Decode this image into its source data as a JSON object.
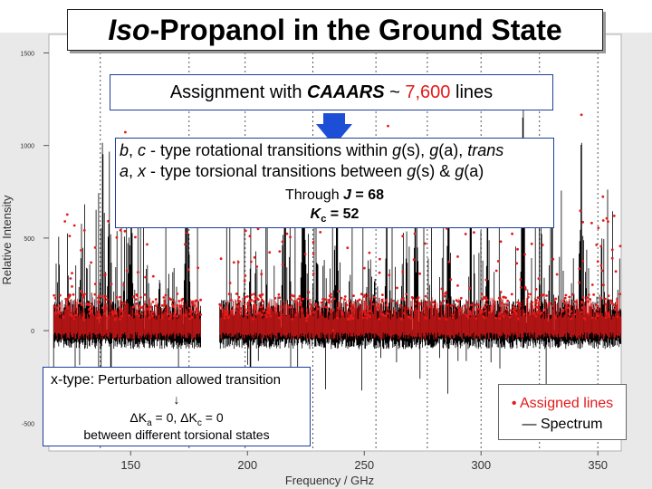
{
  "title": {
    "prefix": "Iso",
    "rest": "-Propanol in the Ground State"
  },
  "assignment_box": {
    "text_before": "Assignment with ",
    "method": "CAAARS",
    "tilde": " ~ ",
    "count": "7,600",
    "text_after": " lines"
  },
  "info_box": {
    "line1": {
      "b": "b",
      "sep1": ", ",
      "c": "c",
      "mid": " - type rotational transitions within ",
      "gs": "g",
      "s": "(s), ",
      "ga": "g",
      "a": "(a), ",
      "trans": "trans"
    },
    "line2": {
      "a": "a",
      "sep1": ", ",
      "x": "x",
      "mid": " - type torsional transitions between ",
      "g1": "g",
      "s1": "(s) & ",
      "g2": "g",
      "a2": "(a)"
    },
    "line3": {
      "prefix": "Through ",
      "J": "J",
      "eq": " = 68"
    },
    "line4": {
      "K": "K",
      "sub": "c",
      "eq": " = 52"
    }
  },
  "xtype_box": {
    "prefix": "x-type:",
    "desc": " Perturbation allowed transition",
    "arrow": "↓",
    "delta1": "ΔK",
    "sub1": "a",
    "eq1": " = 0, ",
    "delta2": "ΔK",
    "sub2": "c",
    "eq2": " = 0",
    "line3": "between different torsional states"
  },
  "legend": {
    "assigned": "• Assigned lines",
    "spectrum": "— Spectrum"
  },
  "chart_data": {
    "type": "line",
    "xlabel": "Frequency / GHz",
    "ylabel": "Relative Intensity",
    "x_ticks": [
      "150",
      "200",
      "250",
      "300",
      "350"
    ],
    "y_ticks": [
      "1500",
      "1000",
      "500",
      "0",
      "-500"
    ],
    "xlim": [
      115,
      360
    ],
    "ylim": [
      -650,
      1600
    ],
    "series": [
      {
        "name": "Spectrum",
        "color": "#000000"
      },
      {
        "name": "Assigned lines",
        "color": "#e51a1a"
      }
    ],
    "gap_ghz": [
      [
        180,
        188
      ]
    ],
    "dashed_markers_ghz": [
      137,
      175,
      199,
      228,
      255,
      277,
      300,
      325,
      350
    ],
    "bursts": [
      {
        "center": 129,
        "width": 1.2,
        "height": 790
      },
      {
        "center": 138,
        "width": 1.5,
        "height": 1280
      },
      {
        "center": 141,
        "width": 1.2,
        "height": 1120
      },
      {
        "center": 148,
        "width": 1.5,
        "height": 1360
      },
      {
        "center": 150,
        "width": 1.3,
        "height": 1230
      },
      {
        "center": 157,
        "width": 1.2,
        "height": 660
      },
      {
        "center": 174,
        "width": 1.4,
        "height": 1310
      },
      {
        "center": 216,
        "width": 1.6,
        "height": 1360
      },
      {
        "center": 224,
        "width": 1.5,
        "height": 1230
      },
      {
        "center": 229,
        "width": 1.4,
        "height": 1290
      },
      {
        "center": 238,
        "width": 1.3,
        "height": 1150
      },
      {
        "center": 260,
        "width": 1.5,
        "height": 1360
      },
      {
        "center": 272,
        "width": 1.4,
        "height": 1200
      },
      {
        "center": 286,
        "width": 1.4,
        "height": 1150
      },
      {
        "center": 296,
        "width": 1.6,
        "height": 1360
      },
      {
        "center": 303,
        "width": 1.3,
        "height": 1220
      },
      {
        "center": 318,
        "width": 1.5,
        "height": 1360
      },
      {
        "center": 330,
        "width": 1.4,
        "height": 1270
      },
      {
        "center": 343,
        "width": 1.5,
        "height": 1360
      },
      {
        "center": 352,
        "width": 1.3,
        "height": 900
      }
    ]
  }
}
